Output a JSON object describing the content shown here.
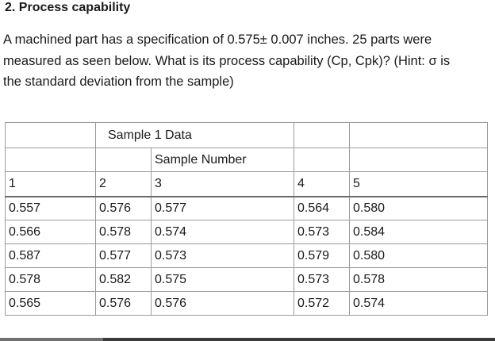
{
  "question": {
    "heading": "2. Process capability",
    "lines": [
      "A machined part has a specification of 0.575± 0.007 inches. 25 parts were",
      "measured as seen below. What is its process capability (Cp, Cpk)? (Hint: σ is",
      "the standard deviation from the sample)"
    ]
  },
  "table": {
    "title": "Sample 1 Data",
    "subtitle": "Sample Number",
    "column_numbers": [
      "1",
      "2",
      "3",
      "4",
      "5"
    ],
    "rows": [
      [
        "0.557",
        "0.576",
        "0.577",
        "0.564",
        "0.580"
      ],
      [
        "0.566",
        "0.578",
        "0.574",
        "0.573",
        "0.584"
      ],
      [
        "0.587",
        "0.577",
        "0.573",
        "0.579",
        "0.580"
      ],
      [
        "0.578",
        "0.582",
        "0.575",
        "0.573",
        "0.578"
      ],
      [
        "0.565",
        "0.576",
        "0.576",
        "0.572",
        "0.574"
      ]
    ]
  }
}
